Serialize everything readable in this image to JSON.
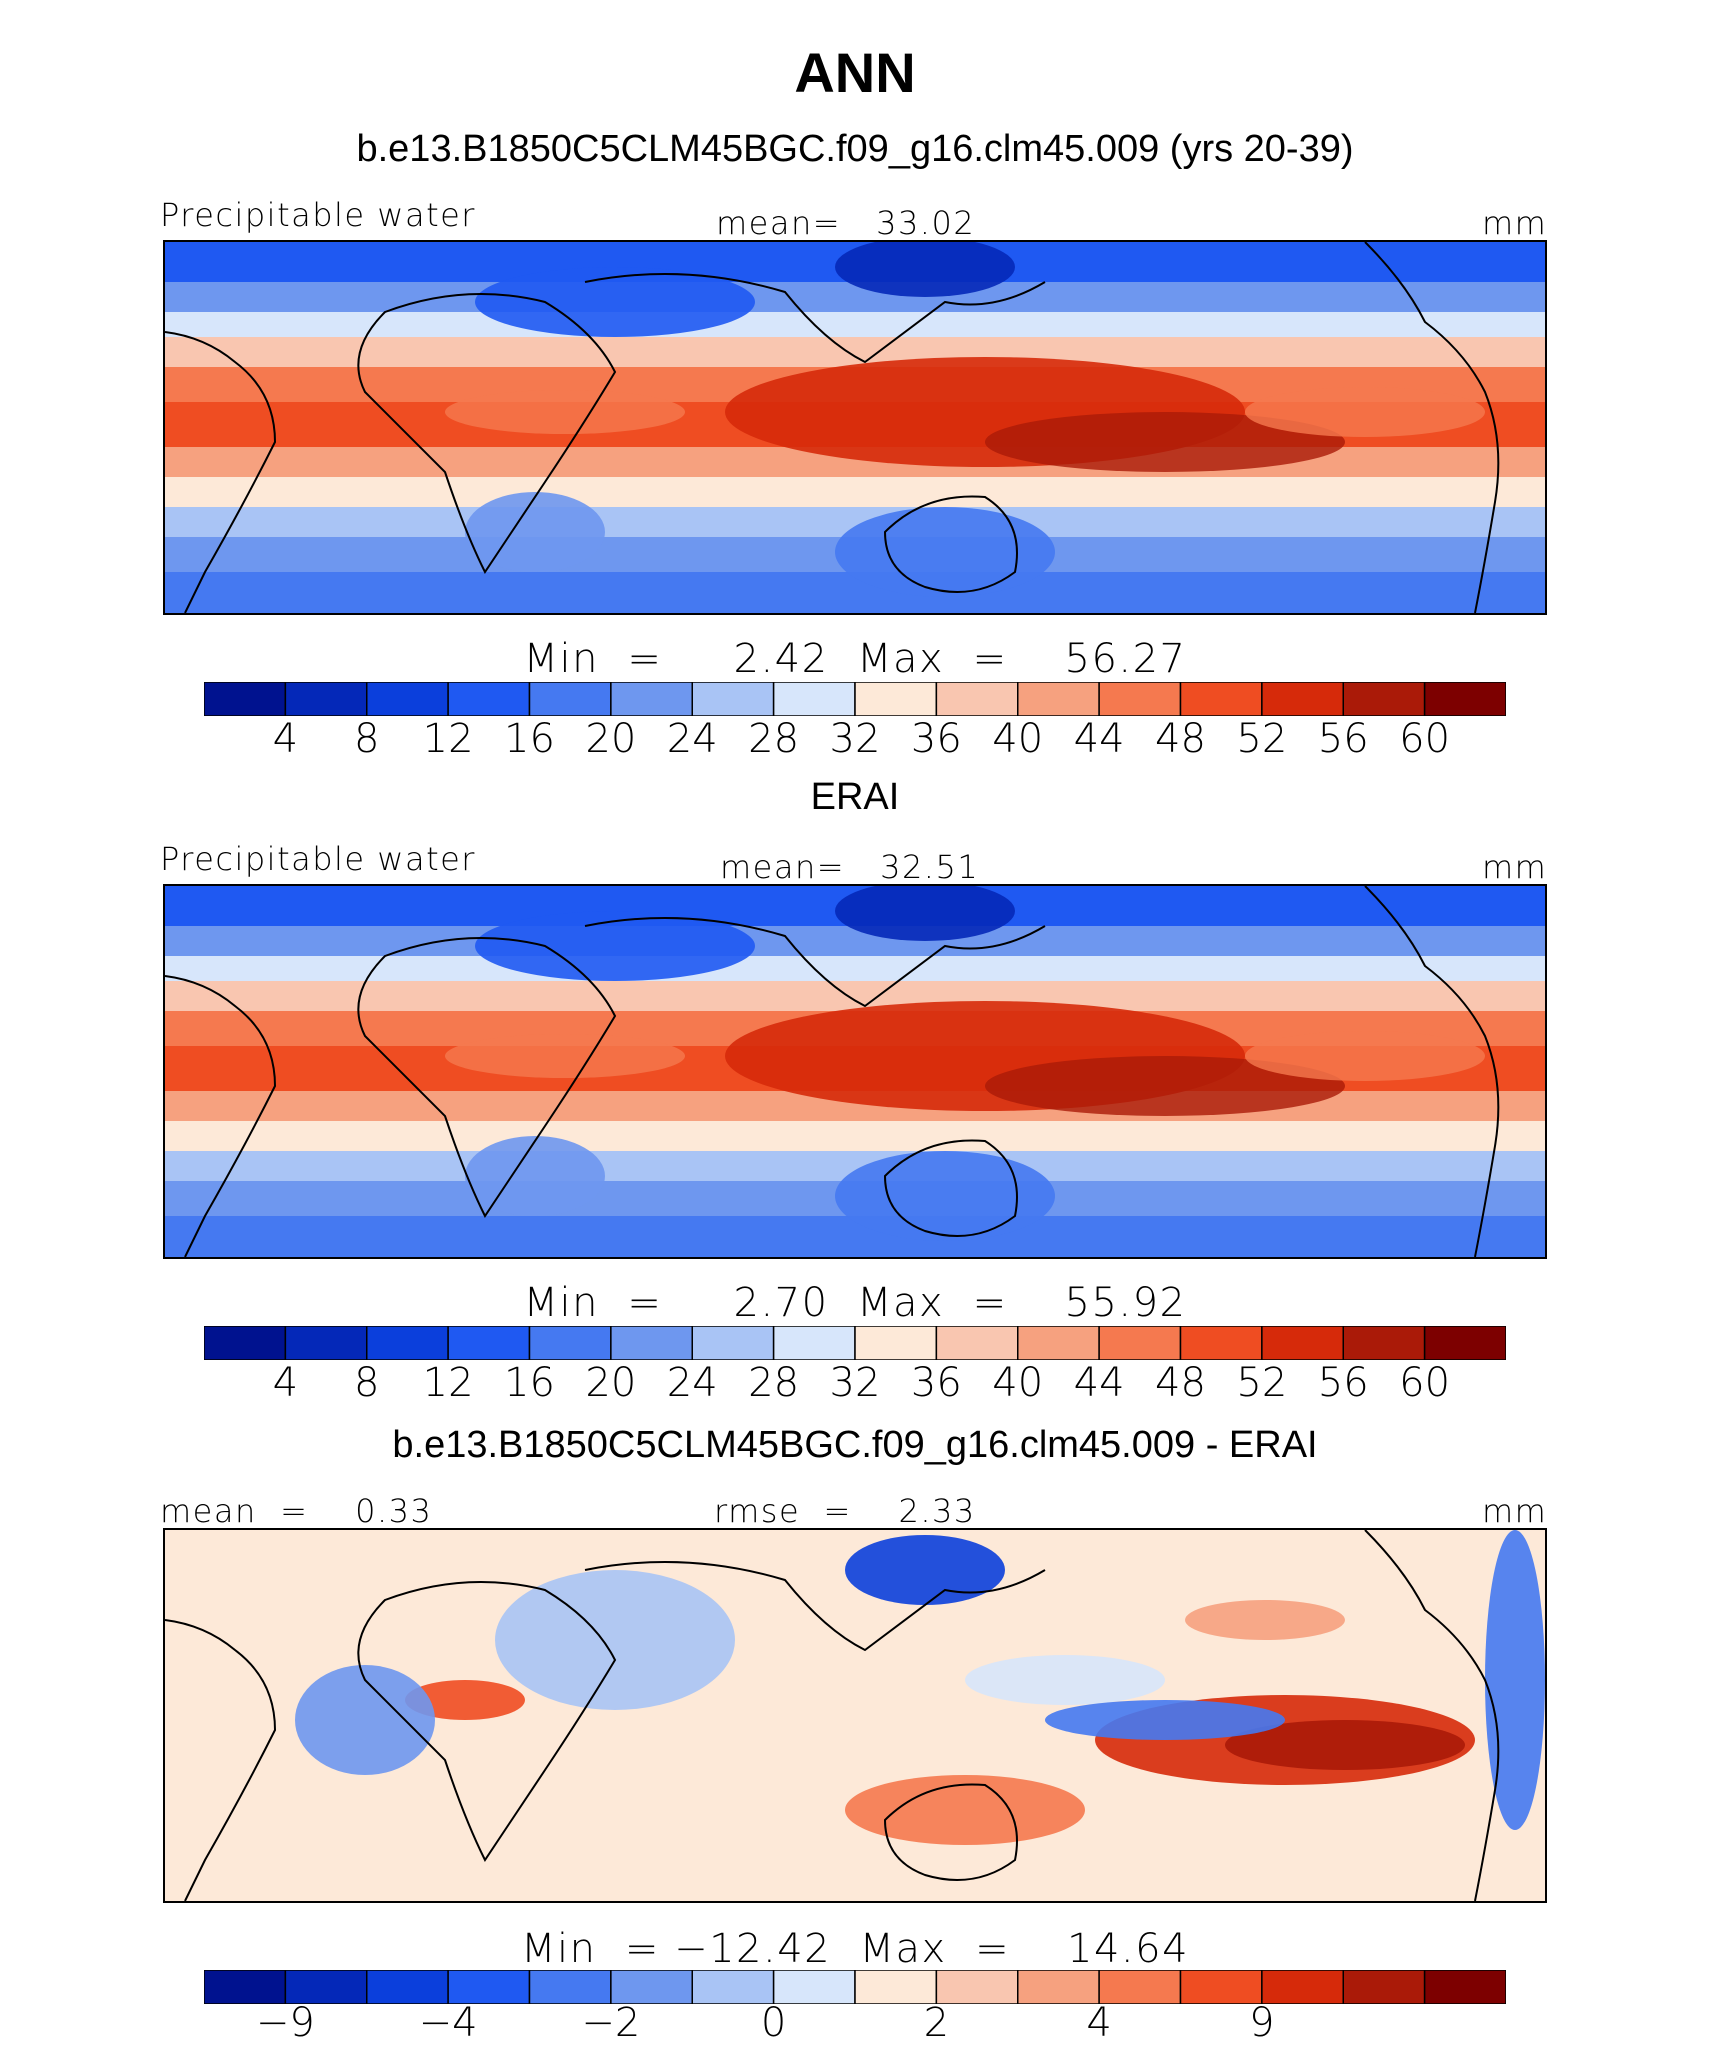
{
  "title": "ANN",
  "colors": {
    "scale": [
      "#00128f",
      "#0428b8",
      "#0b3fdc",
      "#1f59f2",
      "#4579f1",
      "#6e97ef",
      "#a9c4f5",
      "#d7e6fb",
      "#fde9d8",
      "#f9c6b0",
      "#f6a17f",
      "#f5794f",
      "#ef4d22",
      "#d62a0a",
      "#aa1a08",
      "#7d0000"
    ]
  },
  "panels": [
    {
      "title": "b.e13.B1850C5CLM45BGC.f09_g16.clm45.009 (yrs 20-39)",
      "left_label": "Precipitable water",
      "center_label": "mean=   33.02",
      "units": "mm",
      "minmax": "Min  =     2.42  Max  =    56.27",
      "ticks": [
        "4",
        "8",
        "12",
        "16",
        "20",
        "24",
        "28",
        "32",
        "36",
        "40",
        "44",
        "48",
        "52",
        "56",
        "60"
      ]
    },
    {
      "title": "ERAI",
      "left_label": "Precipitable water",
      "center_label": "mean=   32.51",
      "units": "mm",
      "minmax": "Min  =     2.70  Max  =    55.92",
      "ticks": [
        "4",
        "8",
        "12",
        "16",
        "20",
        "24",
        "28",
        "32",
        "36",
        "40",
        "44",
        "48",
        "52",
        "56",
        "60"
      ]
    },
    {
      "title": "b.e13.B1850C5CLM45BGC.f09_g16.clm45.009 - ERAI",
      "left_label": "mean  =    0.33",
      "center_label": "rmse  =    2.33",
      "units": "mm",
      "minmax": "Min  = −12.42  Max  =    14.64",
      "ticks": [
        "−9",
        "",
        "−4",
        "",
        "−2",
        "",
        "0",
        "",
        "2",
        "",
        "4",
        "",
        "9",
        "",
        ""
      ]
    }
  ],
  "chart_data": [
    {
      "type": "heatmap",
      "title": "b.e13.B1850C5CLM45BGC.f09_g16.clm45.009 (yrs 20-39)",
      "variable": "Precipitable water",
      "units": "mm",
      "mean": 33.02,
      "min": 2.42,
      "max": 56.27,
      "contour_levels": [
        4,
        8,
        12,
        16,
        20,
        24,
        28,
        32,
        36,
        40,
        44,
        48,
        52,
        56,
        60
      ]
    },
    {
      "type": "heatmap",
      "title": "ERAI",
      "variable": "Precipitable water",
      "units": "mm",
      "mean": 32.51,
      "min": 2.7,
      "max": 55.92,
      "contour_levels": [
        4,
        8,
        12,
        16,
        20,
        24,
        28,
        32,
        36,
        40,
        44,
        48,
        52,
        56,
        60
      ]
    },
    {
      "type": "heatmap",
      "title": "b.e13.B1850C5CLM45BGC.f09_g16.clm45.009 - ERAI",
      "units": "mm",
      "mean": 0.33,
      "rmse": 2.33,
      "min": -12.42,
      "max": 14.64,
      "contour_levels_labeled": [
        -9,
        -4,
        -2,
        0,
        2,
        4,
        9
      ]
    }
  ]
}
